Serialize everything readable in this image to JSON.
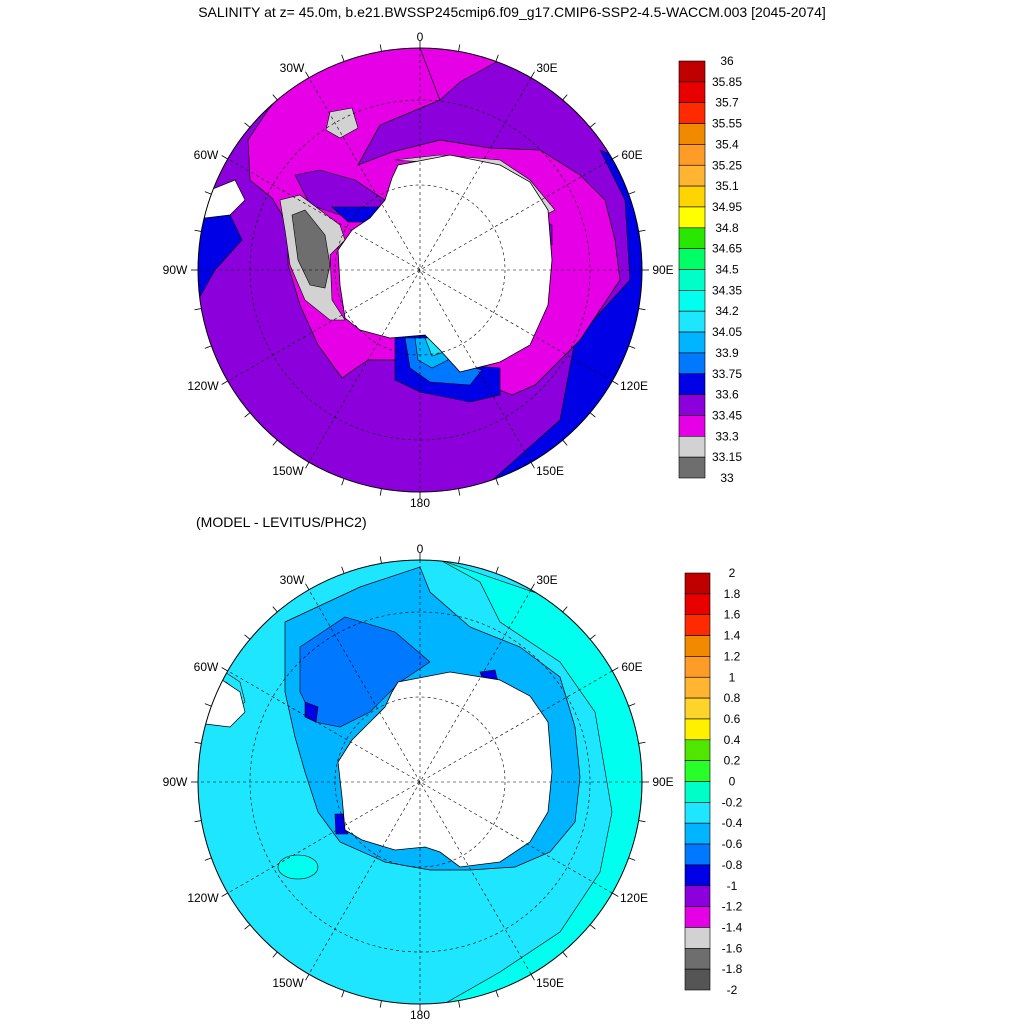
{
  "title": "SALINITY at z=  45.0m, b.e21.BWSSP245cmip6.f09_g17.CMIP6-SSP2-4.5-WACCM.003 [2045-2074]",
  "subtitle": "(MODEL - LEVITUS/PHC2)",
  "longitude_labels": [
    "0",
    "30E",
    "60E",
    "90E",
    "120E",
    "150E",
    "180",
    "150W",
    "120W",
    "90W",
    "60W",
    "30W"
  ],
  "panels": [
    {
      "name": "salinity",
      "colorbar": {
        "labels": [
          "36",
          "35.85",
          "35.7",
          "35.55",
          "35.4",
          "35.25",
          "35.1",
          "34.95",
          "34.8",
          "34.65",
          "34.5",
          "34.35",
          "34.2",
          "34.05",
          "33.9",
          "33.75",
          "33.6",
          "33.45",
          "33.3",
          "33.15",
          "33"
        ],
        "colors": [
          "#c00000",
          "#e80000",
          "#ff2a00",
          "#f28a00",
          "#ff9c28",
          "#ffb432",
          "#ffd400",
          "#ffff00",
          "#28e600",
          "#00ff64",
          "#00ffc8",
          "#00ffee",
          "#1ee6ff",
          "#00b4ff",
          "#0078ff",
          "#0000e6",
          "#8c00dc",
          "#e600e6",
          "#d2d2d2",
          "#6e6e6e"
        ]
      }
    },
    {
      "name": "difference",
      "colorbar": {
        "labels": [
          "2",
          "1.8",
          "1.6",
          "1.4",
          "1.2",
          "1",
          "0.8",
          "0.6",
          "0.4",
          "0.2",
          "0",
          "-0.2",
          "-0.4",
          "-0.6",
          "-0.8",
          "-1",
          "-1.2",
          "-1.4",
          "-1.6",
          "-1.8",
          "-2"
        ],
        "colors": [
          "#c00000",
          "#e80000",
          "#ff2a00",
          "#f28a00",
          "#ff9c28",
          "#ffb432",
          "#ffd42a",
          "#fff000",
          "#50e600",
          "#28ff28",
          "#00ffc8",
          "#1ee6ff",
          "#00b4ff",
          "#0078ff",
          "#0000e6",
          "#8c00dc",
          "#e600e6",
          "#d2d2d2",
          "#6e6e6e",
          "#555555"
        ]
      }
    }
  ]
}
